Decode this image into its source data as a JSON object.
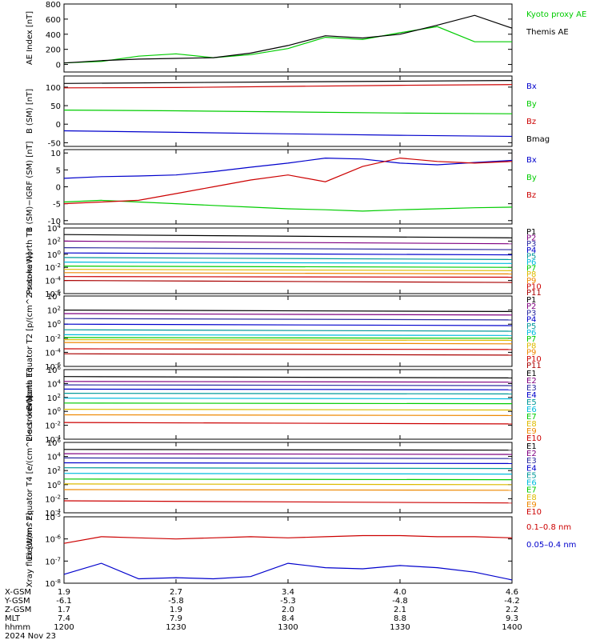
{
  "date_label": "2024 Nov 23",
  "colors": {
    "black": "#000000",
    "red": "#cc0000",
    "green": "#00cc00",
    "blue": "#0000cc",
    "purple": "#800080",
    "darkblue": "#2a2aa0",
    "teal": "#009999",
    "cyan": "#00bbdd",
    "yellow": "#ddbb00",
    "orange": "#ee8800",
    "olive": "#999900"
  },
  "footer": {
    "rows": [
      {
        "label": "X-GSM",
        "values": [
          "1.9",
          "2.7",
          "3.4",
          "4.0",
          "4.6"
        ]
      },
      {
        "label": "Y-GSM",
        "values": [
          "-6.1",
          "-5.8",
          "-5.3",
          "-4.8",
          "-4.2"
        ]
      },
      {
        "label": "Z-GSM",
        "values": [
          "1.7",
          "1.9",
          "2.0",
          "2.1",
          "2.2"
        ]
      },
      {
        "label": "MLT",
        "values": [
          "7.4",
          "7.9",
          "8.4",
          "8.8",
          "9.3"
        ]
      },
      {
        "label": "hhmm",
        "values": [
          "1200",
          "1230",
          "1300",
          "1330",
          "1400"
        ]
      }
    ]
  },
  "chart_data": [
    {
      "type": "line",
      "ylabel": "AE Index [nT]",
      "ylim": [
        -100,
        800
      ],
      "yticks": [
        "0",
        "200",
        "400",
        "600",
        "800"
      ],
      "x": [
        "12:00",
        "12:10",
        "12:20",
        "12:30",
        "12:40",
        "12:50",
        "13:00",
        "13:10",
        "13:20",
        "13:30",
        "13:40",
        "13:50",
        "14:00"
      ],
      "series": [
        {
          "name": "Kyoto proxy AE",
          "color": "#00cc00",
          "values": [
            20,
            40,
            110,
            140,
            90,
            130,
            210,
            360,
            330,
            420,
            500,
            300,
            300
          ]
        },
        {
          "name": "Themis AE",
          "color": "#000000",
          "values": [
            20,
            50,
            70,
            80,
            90,
            150,
            250,
            380,
            350,
            400,
            520,
            650,
            480
          ]
        }
      ]
    },
    {
      "type": "line",
      "ylabel": "B (SM) [nT]",
      "ylim": [
        -60,
        130
      ],
      "yticks": [
        "-50",
        "0",
        "50",
        "100"
      ],
      "x": [
        "12:00",
        "12:30",
        "13:00",
        "13:30",
        "14:00"
      ],
      "series": [
        {
          "name": "Bx",
          "color": "#0000cc",
          "values": [
            -18,
            -22,
            -26,
            -30,
            -33
          ]
        },
        {
          "name": "By",
          "color": "#00cc00",
          "values": [
            38,
            36,
            33,
            30,
            28
          ]
        },
        {
          "name": "Bz",
          "color": "#cc0000",
          "values": [
            98,
            99,
            102,
            105,
            107
          ]
        },
        {
          "name": "Bmag",
          "color": "#000000",
          "values": [
            110,
            112,
            114,
            116,
            118
          ]
        }
      ]
    },
    {
      "type": "line",
      "ylabel": "B (SM)−IGRF (SM) [nT]",
      "ylim": [
        -11,
        11
      ],
      "yticks": [
        "-10",
        "-5",
        "0",
        "5",
        "10"
      ],
      "x": [
        "12:00",
        "12:10",
        "12:20",
        "12:30",
        "12:40",
        "12:50",
        "13:00",
        "13:10",
        "13:20",
        "13:30",
        "13:40",
        "13:50",
        "14:00"
      ],
      "series": [
        {
          "name": "Bx",
          "color": "#0000cc",
          "values": [
            2.5,
            3.0,
            3.2,
            3.5,
            4.5,
            5.8,
            7.0,
            8.5,
            8.2,
            7.0,
            6.5,
            7.2,
            7.8
          ]
        },
        {
          "name": "By",
          "color": "#00cc00",
          "values": [
            -4.5,
            -4.0,
            -4.5,
            -5.0,
            -5.5,
            -6.0,
            -6.5,
            -6.8,
            -7.2,
            -6.8,
            -6.5,
            -6.2,
            -6.0
          ]
        },
        {
          "name": "Bz",
          "color": "#cc0000",
          "values": [
            -5.0,
            -4.5,
            -4.0,
            -2.0,
            0.0,
            2.0,
            3.5,
            1.5,
            6.0,
            8.5,
            7.5,
            7.0,
            7.5
          ]
        }
      ]
    },
    {
      "type": "line",
      "ylabel": "Protons North T1",
      "yscale": "log",
      "ylim": [
        -6,
        4
      ],
      "yticks": [
        "10^4",
        "10^2",
        "10^0",
        "10^-2",
        "10^-4",
        "10^-6"
      ],
      "x": [
        "12:00",
        "14:00"
      ],
      "series": [
        {
          "name": "P1",
          "color": "#000000",
          "values": [
            3.0,
            2.5
          ]
        },
        {
          "name": "P2",
          "color": "#800080",
          "values": [
            2.0,
            1.6
          ]
        },
        {
          "name": "P3",
          "color": "#2a2aa0",
          "values": [
            1.0,
            0.7
          ]
        },
        {
          "name": "P4",
          "color": "#0000cc",
          "values": [
            0.2,
            -0.1
          ]
        },
        {
          "name": "P5",
          "color": "#009999",
          "values": [
            -0.5,
            -0.8
          ]
        },
        {
          "name": "P6",
          "color": "#00bbdd",
          "values": [
            -1.2,
            -1.4
          ]
        },
        {
          "name": "P7",
          "color": "#00cc00",
          "values": [
            -1.8,
            -2.0
          ]
        },
        {
          "name": "P8",
          "color": "#ddbb00",
          "values": [
            -2.3,
            -2.5
          ]
        },
        {
          "name": "P9",
          "color": "#ee8800",
          "values": [
            -2.8,
            -3.0
          ]
        },
        {
          "name": "P10",
          "color": "#cc0000",
          "values": [
            -3.4,
            -3.5
          ]
        },
        {
          "name": "P11",
          "color": "#aa0000",
          "values": [
            -4.0,
            -4.3
          ]
        }
      ]
    },
    {
      "type": "line",
      "ylabel": "Protons Equator T2 [p/(cm^2-s-sr-keV)]",
      "yscale": "log",
      "ylim": [
        -6,
        4
      ],
      "yticks": [
        "10^4",
        "10^2",
        "10^0",
        "10^-2",
        "10^-4",
        "10^-6"
      ],
      "x": [
        "12:00",
        "14:00"
      ],
      "series": [
        {
          "name": "P1",
          "color": "#000000",
          "values": [
            2.0,
            1.8
          ]
        },
        {
          "name": "P2",
          "color": "#800080",
          "values": [
            1.5,
            1.3
          ]
        },
        {
          "name": "P3",
          "color": "#2a2aa0",
          "values": [
            0.8,
            0.6
          ]
        },
        {
          "name": "P4",
          "color": "#0000cc",
          "values": [
            0.0,
            -0.2
          ]
        },
        {
          "name": "P5",
          "color": "#009999",
          "values": [
            -0.8,
            -1.0
          ]
        },
        {
          "name": "P6",
          "color": "#00bbdd",
          "values": [
            -1.5,
            -1.6
          ]
        },
        {
          "name": "P7",
          "color": "#00cc00",
          "values": [
            -1.9,
            -2.0
          ]
        },
        {
          "name": "P8",
          "color": "#ddbb00",
          "values": [
            -2.2,
            -2.3
          ]
        },
        {
          "name": "P9",
          "color": "#ee8800",
          "values": [
            -2.6,
            -2.8
          ]
        },
        {
          "name": "P10",
          "color": "#cc0000",
          "values": [
            -3.5,
            -3.6
          ]
        },
        {
          "name": "P11",
          "color": "#aa0000",
          "values": [
            -4.2,
            -4.4
          ]
        }
      ]
    },
    {
      "type": "line",
      "ylabel": "Electrons North T3",
      "yscale": "log",
      "ylim": [
        -4,
        6
      ],
      "yticks": [
        "10^6",
        "10^4",
        "10^2",
        "10^0",
        "10^-2",
        "10^-4"
      ],
      "x": [
        "12:00",
        "14:00"
      ],
      "series": [
        {
          "name": "E1",
          "color": "#000000",
          "values": [
            5.0,
            4.8
          ]
        },
        {
          "name": "E2",
          "color": "#800080",
          "values": [
            4.3,
            4.2
          ]
        },
        {
          "name": "E3",
          "color": "#2a2aa0",
          "values": [
            3.8,
            3.7
          ]
        },
        {
          "name": "E4",
          "color": "#0000cc",
          "values": [
            3.2,
            3.1
          ]
        },
        {
          "name": "E5",
          "color": "#009999",
          "values": [
            2.6,
            2.5
          ]
        },
        {
          "name": "E6",
          "color": "#00bbdd",
          "values": [
            1.9,
            1.8
          ]
        },
        {
          "name": "E7",
          "color": "#00cc00",
          "values": [
            1.2,
            1.1
          ]
        },
        {
          "name": "E8",
          "color": "#ddbb00",
          "values": [
            0.3,
            0.2
          ]
        },
        {
          "name": "E9",
          "color": "#ee8800",
          "values": [
            -0.5,
            -0.6
          ]
        },
        {
          "name": "E10",
          "color": "#cc0000",
          "values": [
            -1.6,
            -1.8
          ]
        }
      ]
    },
    {
      "type": "line",
      "ylabel": "Electrons Equator T4 [e/(cm^2-s-sr-keV)]",
      "yscale": "log",
      "ylim": [
        -4,
        6
      ],
      "yticks": [
        "10^6",
        "10^4",
        "10^2",
        "10^0",
        "10^-2",
        "10^-4"
      ],
      "x": [
        "12:00",
        "14:00"
      ],
      "series": [
        {
          "name": "E1",
          "color": "#000000",
          "values": [
            5.0,
            4.9
          ]
        },
        {
          "name": "E2",
          "color": "#800080",
          "values": [
            4.4,
            4.3
          ]
        },
        {
          "name": "E3",
          "color": "#2a2aa0",
          "values": [
            3.8,
            3.7
          ]
        },
        {
          "name": "E4",
          "color": "#0000cc",
          "values": [
            3.1,
            3.0
          ]
        },
        {
          "name": "E5",
          "color": "#009999",
          "values": [
            2.4,
            2.3
          ]
        },
        {
          "name": "E6",
          "color": "#00bbdd",
          "values": [
            1.6,
            1.5
          ]
        },
        {
          "name": "E7",
          "color": "#00cc00",
          "values": [
            0.8,
            0.7
          ]
        },
        {
          "name": "E8",
          "color": "#ddbb00",
          "values": [
            0.1,
            0.0
          ]
        },
        {
          "name": "E9",
          "color": "#ee8800",
          "values": [
            -0.7,
            -0.8
          ]
        },
        {
          "name": "E10",
          "color": "#cc0000",
          "values": [
            -2.3,
            -2.6
          ]
        }
      ]
    },
    {
      "type": "line",
      "ylabel": "Xray flux [W/m^2]",
      "yscale": "log",
      "ylim": [
        -8,
        -5
      ],
      "yticks": [
        "10^-5",
        "10^-6",
        "10^-7",
        "10^-8"
      ],
      "x": [
        "12:00",
        "12:10",
        "12:20",
        "12:30",
        "12:40",
        "12:50",
        "13:00",
        "13:10",
        "13:20",
        "13:30",
        "13:40",
        "13:50",
        "14:00"
      ],
      "series": [
        {
          "name": "0.1–0.8 nm",
          "color": "#cc0000",
          "values": [
            -6.2,
            -5.9,
            -5.95,
            -6.0,
            -5.95,
            -5.9,
            -5.95,
            -5.9,
            -5.85,
            -5.85,
            -5.9,
            -5.9,
            -5.95
          ]
        },
        {
          "name": "0.05–0.4 nm",
          "color": "#0000cc",
          "values": [
            -7.6,
            -7.1,
            -7.8,
            -7.75,
            -7.8,
            -7.7,
            -7.1,
            -7.3,
            -7.35,
            -7.2,
            -7.3,
            -7.5,
            -7.85
          ]
        }
      ]
    }
  ]
}
